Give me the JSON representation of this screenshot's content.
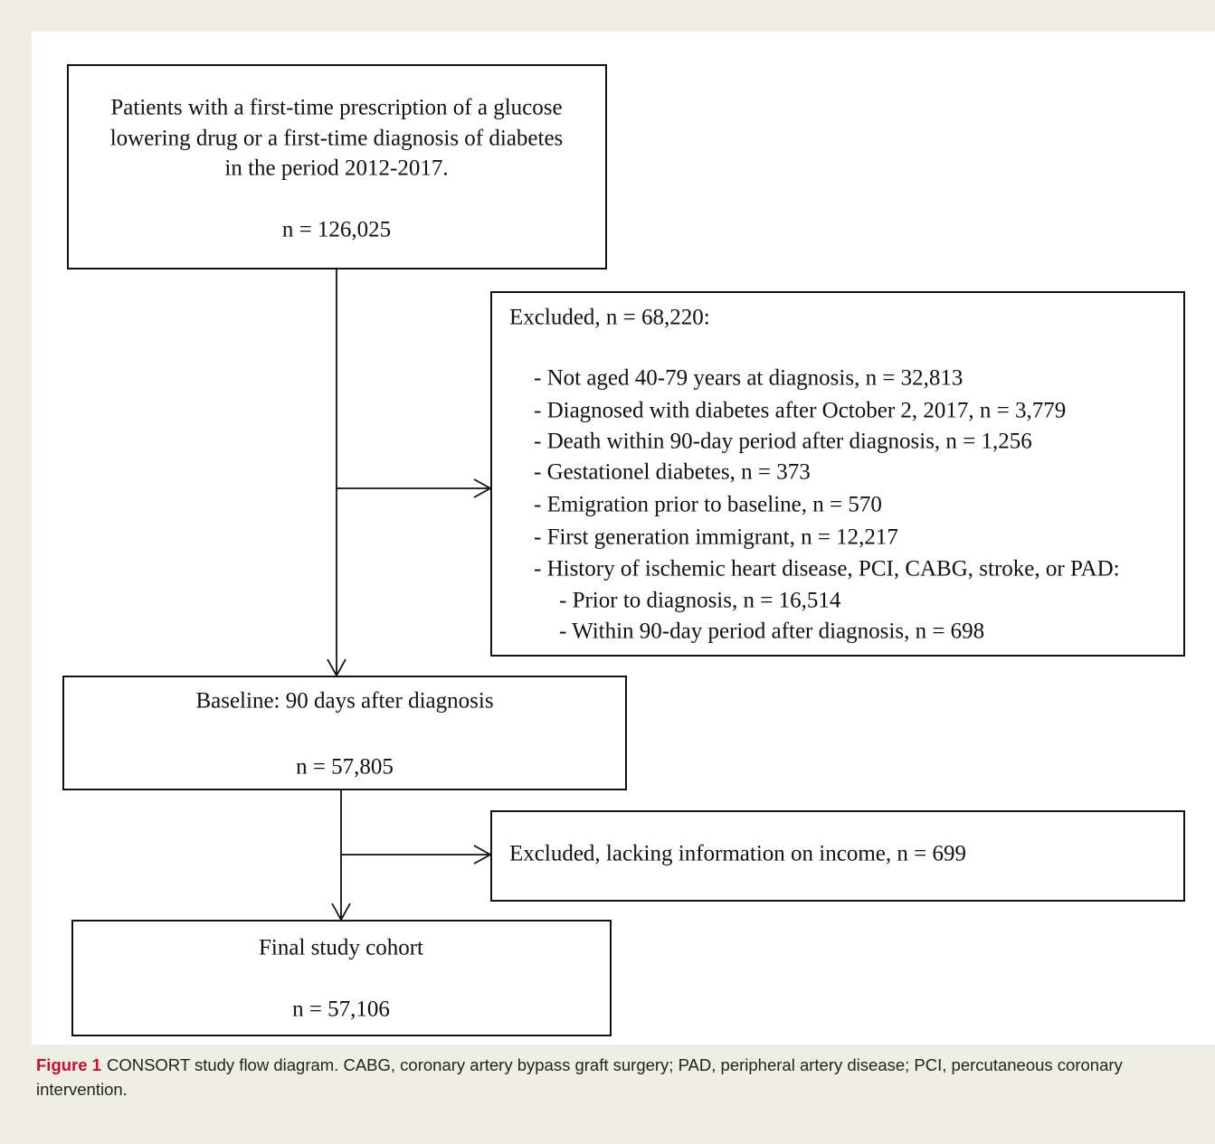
{
  "nodes": [
    {
      "lines": [
        "Patients with a first-time prescription of a glucose",
        "lowering drug or a first-time diagnosis of diabetes",
        "in the period 2012-2017."
      ],
      "n": "n = 126,025"
    },
    {
      "lines": [
        "Baseline: 90 days after diagnosis"
      ],
      "n": "n = 57,805"
    },
    {
      "lines": [
        "Final study cohort"
      ],
      "n": "n = 57,106"
    }
  ],
  "exclusions": [
    {
      "title": "Excluded, n = 68,220:",
      "items": [
        "- Not aged 40-79 years at diagnosis, n = 32,813",
        "- Diagnosed with diabetes after October 2, 2017, n = 3,779",
        "- Death within 90-day period after diagnosis, n = 1,256",
        "- Gestationel diabetes, n = 373",
        "- Emigration prior to baseline, n = 570",
        "- First generation immigrant, n = 12,217",
        "- History of ischemic heart disease, PCI, CABG, stroke, or PAD:"
      ],
      "sub_items": [
        "- Prior to diagnosis, n = 16,514",
        "- Within 90-day period after diagnosis, n = 698"
      ]
    },
    {
      "title": "Excluded, lacking information on income, n = 699"
    }
  ],
  "caption": {
    "label": "Figure 1",
    "text": "CONSORT study flow diagram. CABG, coronary artery bypass graft surgery; PAD, peripheral artery disease; PCI, percutaneous coronary intervention."
  }
}
